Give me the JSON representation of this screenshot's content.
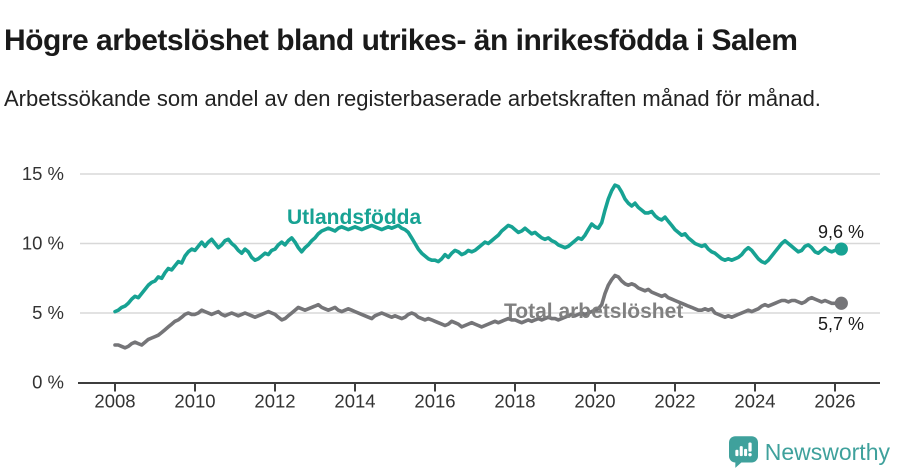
{
  "header": {
    "title": "Högre arbetslöshet bland utrikes- än inrikesfödda i Salem",
    "subtitle": "Arbetssökande som andel av den registerbaserade arbetskraften månad för månad."
  },
  "colors": {
    "accent_teal": "#17a293",
    "line_gray": "#757578",
    "label_gray": "#808080",
    "grid": "#d8d8d8",
    "axis": "#3d3d3d",
    "tick_text": "#333333",
    "end_label_text": "#1a1a1a",
    "logo_teal": "#3fa19c"
  },
  "logo": {
    "brand": "Newsworthy"
  },
  "chart_data": {
    "type": "line",
    "title": "Högre arbetslöshet bland utrikes- än inrikesfödda i Salem",
    "xlabel": "",
    "ylabel": "",
    "x_start_year": 2008,
    "x_step_months": 1,
    "x_ticks": [
      2008,
      2010,
      2012,
      2014,
      2016,
      2018,
      2020,
      2022,
      2024,
      2026
    ],
    "ylim": [
      0,
      15
    ],
    "y_ticks": [
      {
        "value": 0,
        "label": "0 %"
      },
      {
        "value": 5,
        "label": "5 %"
      },
      {
        "value": 10,
        "label": "10 %"
      },
      {
        "value": 15,
        "label": "15 %"
      }
    ],
    "grid": "horizontal",
    "legend_position": "inline-labels",
    "series": [
      {
        "name": "Utlandsfödda",
        "color": "#17a293",
        "end_label": "9,6 %",
        "end_value": 9.6,
        "values": [
          5.1,
          5.2,
          5.4,
          5.5,
          5.7,
          6.0,
          6.2,
          6.1,
          6.4,
          6.7,
          7.0,
          7.2,
          7.3,
          7.6,
          7.5,
          7.9,
          8.2,
          8.1,
          8.4,
          8.7,
          8.6,
          9.1,
          9.4,
          9.6,
          9.5,
          9.8,
          10.1,
          9.8,
          10.1,
          10.3,
          10.0,
          9.7,
          9.9,
          10.2,
          10.3,
          10.0,
          9.8,
          9.5,
          9.3,
          9.6,
          9.4,
          9.0,
          8.8,
          8.9,
          9.1,
          9.3,
          9.2,
          9.5,
          9.6,
          9.9,
          10.1,
          9.9,
          10.2,
          10.4,
          10.1,
          9.7,
          9.4,
          9.7,
          9.9,
          10.2,
          10.4,
          10.7,
          10.9,
          11.0,
          11.1,
          11.0,
          10.9,
          11.1,
          11.2,
          11.1,
          11.0,
          11.1,
          11.2,
          11.1,
          11.0,
          11.1,
          11.2,
          11.3,
          11.2,
          11.1,
          11.0,
          11.1,
          11.2,
          11.1,
          11.2,
          11.3,
          11.1,
          11.0,
          10.8,
          10.4,
          10.0,
          9.6,
          9.3,
          9.1,
          8.9,
          8.8,
          8.8,
          8.7,
          8.9,
          9.2,
          9.0,
          9.3,
          9.5,
          9.4,
          9.2,
          9.3,
          9.5,
          9.4,
          9.5,
          9.7,
          9.9,
          10.1,
          10.0,
          10.2,
          10.4,
          10.6,
          10.9,
          11.1,
          11.3,
          11.2,
          11.0,
          10.8,
          10.9,
          11.1,
          10.9,
          10.7,
          10.8,
          10.6,
          10.4,
          10.3,
          10.4,
          10.2,
          10.1,
          9.9,
          9.8,
          9.7,
          9.8,
          10.0,
          10.2,
          10.4,
          10.3,
          10.6,
          11.0,
          11.4,
          11.2,
          11.1,
          11.5,
          12.4,
          13.2,
          13.8,
          14.2,
          14.1,
          13.7,
          13.2,
          12.9,
          12.7,
          12.9,
          12.6,
          12.4,
          12.2,
          12.2,
          12.3,
          12.0,
          11.8,
          11.7,
          11.9,
          11.6,
          11.3,
          11.0,
          10.8,
          10.6,
          10.7,
          10.4,
          10.2,
          10.0,
          9.9,
          9.8,
          9.9,
          9.6,
          9.4,
          9.3,
          9.1,
          8.9,
          8.8,
          8.9,
          8.8,
          8.9,
          9.0,
          9.2,
          9.5,
          9.7,
          9.5,
          9.2,
          8.9,
          8.7,
          8.6,
          8.8,
          9.1,
          9.4,
          9.7,
          10.0,
          10.2,
          10.0,
          9.8,
          9.6,
          9.4,
          9.5,
          9.8,
          9.9,
          9.7,
          9.4,
          9.3,
          9.5,
          9.7,
          9.5,
          9.4,
          9.5,
          9.6
        ]
      },
      {
        "name": "Total arbetslöshet",
        "color": "#757578",
        "end_label": "5,7 %",
        "end_value": 5.7,
        "values": [
          2.7,
          2.7,
          2.6,
          2.5,
          2.6,
          2.8,
          2.9,
          2.8,
          2.7,
          2.9,
          3.1,
          3.2,
          3.3,
          3.4,
          3.6,
          3.8,
          4.0,
          4.2,
          4.4,
          4.5,
          4.7,
          4.9,
          5.0,
          4.9,
          4.9,
          5.0,
          5.2,
          5.1,
          5.0,
          4.9,
          5.0,
          5.1,
          4.9,
          4.8,
          4.9,
          5.0,
          4.9,
          4.8,
          4.9,
          5.0,
          4.9,
          4.8,
          4.7,
          4.8,
          4.9,
          5.0,
          5.1,
          5.0,
          4.9,
          4.7,
          4.5,
          4.6,
          4.8,
          5.0,
          5.2,
          5.4,
          5.3,
          5.2,
          5.3,
          5.4,
          5.5,
          5.6,
          5.4,
          5.3,
          5.2,
          5.3,
          5.4,
          5.2,
          5.1,
          5.2,
          5.3,
          5.2,
          5.1,
          5.0,
          4.9,
          4.8,
          4.7,
          4.6,
          4.8,
          4.9,
          5.0,
          4.9,
          4.8,
          4.7,
          4.8,
          4.7,
          4.6,
          4.7,
          4.9,
          5.0,
          4.9,
          4.7,
          4.6,
          4.5,
          4.6,
          4.5,
          4.4,
          4.3,
          4.2,
          4.1,
          4.2,
          4.4,
          4.3,
          4.2,
          4.0,
          4.1,
          4.2,
          4.3,
          4.2,
          4.1,
          4.0,
          4.1,
          4.2,
          4.3,
          4.4,
          4.3,
          4.4,
          4.5,
          4.6,
          4.5,
          4.5,
          4.4,
          4.3,
          4.4,
          4.5,
          4.4,
          4.5,
          4.6,
          4.5,
          4.6,
          4.7,
          4.6,
          4.6,
          4.5,
          4.6,
          4.7,
          4.8,
          4.9,
          4.8,
          4.9,
          5.0,
          4.9,
          5.0,
          5.1,
          5.2,
          5.3,
          5.6,
          6.4,
          7.0,
          7.4,
          7.7,
          7.6,
          7.3,
          7.1,
          7.0,
          7.1,
          7.0,
          6.8,
          6.7,
          6.6,
          6.7,
          6.5,
          6.4,
          6.3,
          6.2,
          6.3,
          6.1,
          6.0,
          5.9,
          5.8,
          5.7,
          5.6,
          5.5,
          5.4,
          5.3,
          5.2,
          5.2,
          5.3,
          5.2,
          5.3,
          5.0,
          4.9,
          4.8,
          4.7,
          4.8,
          4.7,
          4.8,
          4.9,
          5.0,
          5.1,
          5.2,
          5.1,
          5.2,
          5.3,
          5.5,
          5.6,
          5.5,
          5.6,
          5.7,
          5.8,
          5.9,
          5.9,
          5.8,
          5.9,
          5.9,
          5.8,
          5.7,
          5.8,
          6.0,
          6.1,
          6.0,
          5.9,
          5.8,
          5.9,
          5.8,
          5.7,
          5.7,
          5.7
        ]
      }
    ]
  }
}
